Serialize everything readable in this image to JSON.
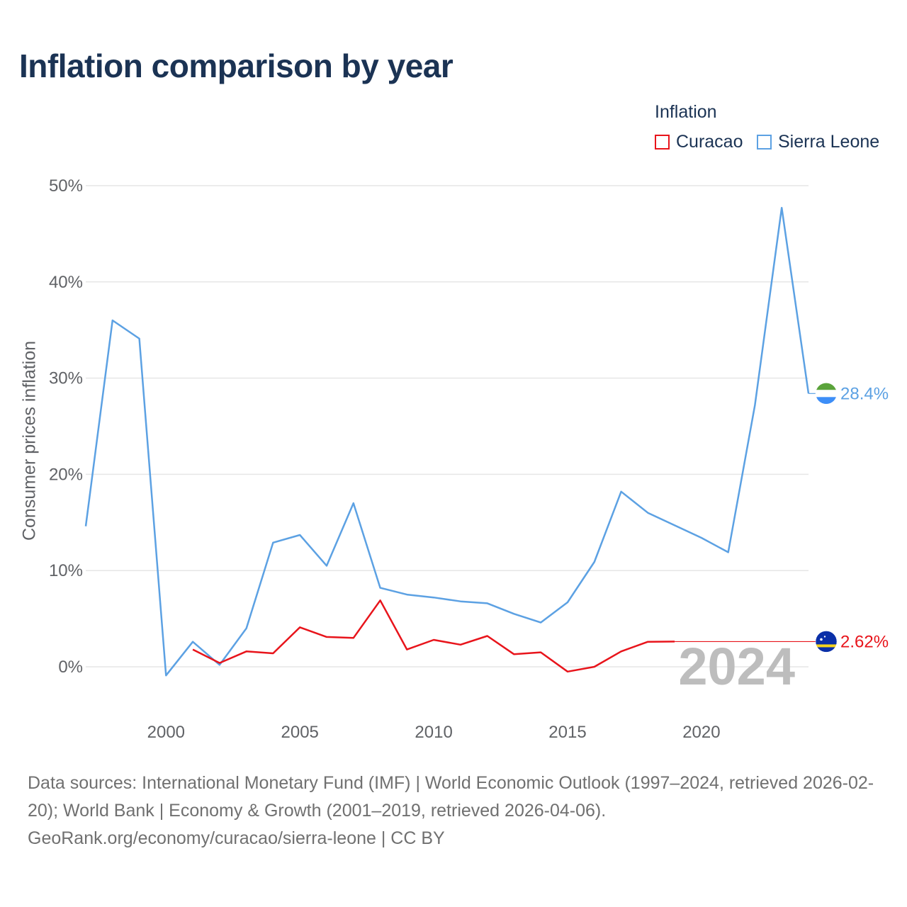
{
  "title": "Inflation comparison by year",
  "legend": {
    "title": "Inflation",
    "items": [
      {
        "name": "Curacao",
        "color": "#e8141b"
      },
      {
        "name": "Sierra Leone",
        "color": "#5ca1e3"
      }
    ]
  },
  "footer": {
    "sources": "Data sources: International Monetary Fund (IMF) | World Economic Outlook (1997–2024, retrieved 2026-02-20); World Bank | Economy & Growth (2001–2019, retrieved 2026-04-06).",
    "credit": "GeoRank.org/economy/curacao/sierra-leone | CC BY"
  },
  "chart_data": {
    "type": "line",
    "title": "Inflation comparison by year",
    "xlabel": "",
    "ylabel": "Consumer prices inflation",
    "xlim": [
      1997,
      2024
    ],
    "ylim": [
      -5,
      52
    ],
    "x_ticks": [
      2000,
      2005,
      2010,
      2015,
      2020
    ],
    "y_ticks": [
      {
        "value": 0,
        "label": "0%"
      },
      {
        "value": 10,
        "label": "10%"
      },
      {
        "value": 20,
        "label": "20%"
      },
      {
        "value": 30,
        "label": "30%"
      },
      {
        "value": 40,
        "label": "40%"
      },
      {
        "value": 50,
        "label": "50%"
      }
    ],
    "current_year": "2024",
    "series": [
      {
        "name": "Sierra Leone",
        "color": "#5ca1e3",
        "end_label": "28.4%",
        "end_value": 28.4,
        "flag": "sierra-leone-flag",
        "x": [
          1997,
          1998,
          1999,
          2000,
          2001,
          2002,
          2003,
          2004,
          2005,
          2006,
          2007,
          2008,
          2009,
          2010,
          2011,
          2012,
          2013,
          2014,
          2015,
          2016,
          2017,
          2018,
          2019,
          2020,
          2021,
          2022,
          2023,
          2024
        ],
        "values": [
          14.6,
          36.0,
          34.1,
          -0.9,
          2.6,
          0.2,
          4.0,
          12.9,
          13.7,
          10.5,
          17.0,
          8.2,
          7.5,
          7.2,
          6.8,
          6.6,
          5.5,
          4.6,
          6.7,
          10.9,
          18.2,
          16.0,
          14.7,
          13.4,
          11.9,
          27.2,
          47.7,
          28.4
        ]
      },
      {
        "name": "Curacao",
        "color": "#e8141b",
        "end_label": "2.62%",
        "end_value": 2.62,
        "flag": "curacao-flag",
        "x": [
          2001,
          2002,
          2003,
          2004,
          2005,
          2006,
          2007,
          2008,
          2009,
          2010,
          2011,
          2012,
          2013,
          2014,
          2015,
          2016,
          2017,
          2018,
          2019
        ],
        "values": [
          1.8,
          0.4,
          1.6,
          1.4,
          4.1,
          3.1,
          3.0,
          6.9,
          1.8,
          2.8,
          2.3,
          3.2,
          1.3,
          1.5,
          -0.5,
          0.0,
          1.6,
          2.6,
          2.62
        ]
      }
    ]
  }
}
